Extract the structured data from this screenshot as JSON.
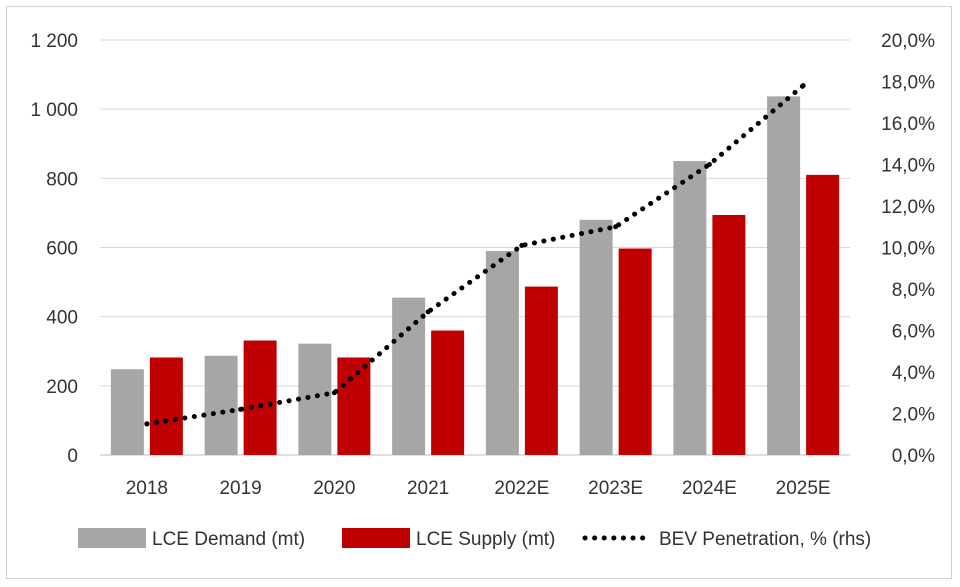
{
  "chart_data": {
    "type": "bar",
    "categories": [
      "2018",
      "2019",
      "2020",
      "2021",
      "2022E",
      "2023E",
      "2024E",
      "2025E"
    ],
    "series": [
      {
        "name": "LCE Demand (mt)",
        "axis": "left",
        "kind": "bar",
        "color": "#a6a6a6",
        "values": [
          248,
          287,
          322,
          455,
          590,
          680,
          850,
          1037
        ]
      },
      {
        "name": "LCE Supply (mt)",
        "axis": "left",
        "kind": "bar",
        "color": "#c00000",
        "values": [
          282,
          331,
          282,
          360,
          487,
          597,
          694,
          810
        ]
      },
      {
        "name": "BEV Penetration, % (rhs)",
        "axis": "right",
        "kind": "dotted-line",
        "color": "#000000",
        "values": [
          1.5,
          2.2,
          3.0,
          6.9,
          10.1,
          11.0,
          14.0,
          17.8
        ]
      }
    ],
    "left_axis": {
      "ylim": [
        0,
        1200
      ],
      "ticks": [
        0,
        200,
        400,
        600,
        800,
        1000,
        1200
      ],
      "tick_labels": [
        "0",
        "200",
        "400",
        "600",
        "800",
        "1 000",
        "1 200"
      ]
    },
    "right_axis": {
      "ylim": [
        0,
        20
      ],
      "ticks": [
        0,
        2,
        4,
        6,
        8,
        10,
        12,
        14,
        16,
        18,
        20
      ],
      "tick_labels": [
        "0,0%",
        "2,0%",
        "4,0%",
        "6,0%",
        "8,0%",
        "10,0%",
        "12,0%",
        "14,0%",
        "16,0%",
        "18,0%",
        "20,0%"
      ]
    },
    "grid": true,
    "legend_position": "bottom",
    "legend": [
      "LCE Demand (mt)",
      "LCE Supply (mt)",
      "BEV Penetration, % (rhs)"
    ]
  }
}
